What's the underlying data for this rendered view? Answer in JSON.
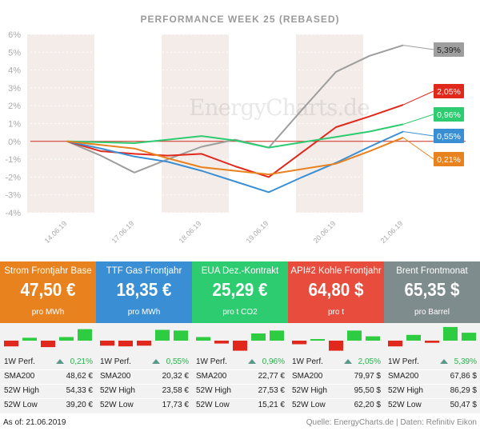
{
  "chart_data": {
    "type": "line",
    "title": "PERFORMANCE   WEEK 25 (REBASED)",
    "x_labels": [
      "14.06.19",
      "17.06.19",
      "18.06.19",
      "19.06.19",
      "20.06.19",
      "21.06.19"
    ],
    "y_ticks": [
      "6%",
      "5%",
      "4%",
      "3%",
      "2%",
      "1%",
      "0%",
      "-1%",
      "-2%",
      "-3%",
      "-4%"
    ],
    "ylim": [
      -4,
      6
    ],
    "grid": true,
    "series": [
      {
        "color": "#9e9e9e",
        "x": [
          0,
          0.5,
          1,
          1.5,
          2,
          2.5,
          3,
          3.5,
          4,
          4.5,
          5
        ],
        "values": [
          0,
          -0.8,
          -1.75,
          -1.0,
          -0.3,
          0.1,
          -0.35,
          1.8,
          3.9,
          4.8,
          5.39
        ],
        "label": "5,39%"
      },
      {
        "color": "#e0281c",
        "x": [
          0,
          0.5,
          1,
          1.5,
          2,
          2.5,
          3,
          3.5,
          4,
          4.5,
          5
        ],
        "values": [
          0,
          -0.55,
          -0.7,
          -0.8,
          -0.7,
          -1.4,
          -2.0,
          -0.6,
          0.8,
          1.4,
          2.05
        ],
        "label": "2,05%"
      },
      {
        "color": "#2ecc71",
        "x": [
          0,
          0.5,
          1,
          1.5,
          2,
          2.5,
          3,
          3.5,
          4,
          4.5,
          5
        ],
        "values": [
          0,
          -0.05,
          -0.1,
          0.1,
          0.3,
          0.05,
          -0.35,
          -0.05,
          0.25,
          0.55,
          0.96
        ],
        "label": "0,96%"
      },
      {
        "color": "#3a8fd4",
        "x": [
          0,
          0.5,
          1,
          1.5,
          2,
          2.5,
          3,
          3.5,
          4,
          4.5,
          5
        ],
        "values": [
          0,
          -0.4,
          -0.85,
          -1.15,
          -1.65,
          -2.25,
          -2.85,
          -2.0,
          -1.2,
          -0.3,
          0.55
        ],
        "label": "0,55%"
      },
      {
        "color": "#e8821f",
        "x": [
          0,
          0.5,
          1,
          1.5,
          2,
          2.5,
          3,
          3.5,
          4,
          4.5,
          5
        ],
        "values": [
          0,
          -0.2,
          -0.4,
          -0.95,
          -1.45,
          -1.65,
          -1.85,
          -1.55,
          -1.25,
          -0.55,
          0.21
        ],
        "label": "0,21%"
      }
    ]
  },
  "watermark": "EnergyCharts.de",
  "panels": [
    {
      "name": "Strom Frontjahr Base",
      "price": "47,50 €",
      "unit": "pro MWh",
      "color": "#e8821f",
      "bars": [
        -0.8,
        0.4,
        -0.9,
        0.5,
        1.6
      ],
      "perf_label": "1W Perf.",
      "perf": "0,21%",
      "sma_label": "SMA200",
      "sma": "48,62 €",
      "high_label": "52W High",
      "high": "54,33 €",
      "low_label": "52W Low",
      "low": "39,20 €"
    },
    {
      "name": "TTF Gas Frontjahr",
      "price": "18,35 €",
      "unit": "pro MWh",
      "color": "#3a8fd4",
      "bars": [
        -0.7,
        -0.8,
        -0.7,
        1.5,
        1.4
      ],
      "perf_label": "1W Perf.",
      "perf": "0,55%",
      "sma_label": "SMA200",
      "sma": "20,32 €",
      "high_label": "52W High",
      "high": "23,58 €",
      "low_label": "52W Low",
      "low": "17,73 €"
    },
    {
      "name": "EUA Dez.-Kontrakt",
      "price": "25,29 €",
      "unit": "pro t CO2",
      "color": "#2ecc71",
      "bars": [
        0.5,
        -0.4,
        -1.4,
        1.0,
        1.4
      ],
      "perf_label": "1W Perf.",
      "perf": "0,96%",
      "sma_label": "SMA200",
      "sma": "22,77 €",
      "high_label": "52W High",
      "high": "27,53 €",
      "low_label": "52W Low",
      "low": "15,21 €"
    },
    {
      "name": "API#2 Kohle Frontjahr",
      "price": "64,80 $",
      "unit": "pro t",
      "color": "#e74c3c",
      "bars": [
        -0.5,
        0.1,
        -1.4,
        1.4,
        0.6
      ],
      "perf_label": "1W Perf.",
      "perf": "2,05%",
      "sma_label": "SMA200",
      "sma": "79,97 $",
      "high_label": "52W High",
      "high": "95,50 $",
      "low_label": "52W Low",
      "low": "62,20 $"
    },
    {
      "name": "Brent Frontmonat",
      "price": "65,35 $",
      "unit": "pro Barrel",
      "color": "#7f8c8d",
      "bars": [
        -0.8,
        0.8,
        -0.3,
        1.9,
        1.1
      ],
      "perf_label": "1W Perf.",
      "perf": "5,39%",
      "sma_label": "SMA200",
      "sma": "67,86 $",
      "high_label": "52W High",
      "high": "86,29 $",
      "low_label": "52W Low",
      "low": "50,47 $"
    }
  ],
  "footer": {
    "as_of": "As of: 21.06.2019",
    "source": "Quelle: EnergyCharts.de | Daten: Refinitiv Eikon"
  },
  "colors": {
    "pos_bar": "#2ecc40",
    "neg_bar": "#e0281c",
    "band": "#e9ddd5",
    "zero_line": "#cc2a1c"
  }
}
